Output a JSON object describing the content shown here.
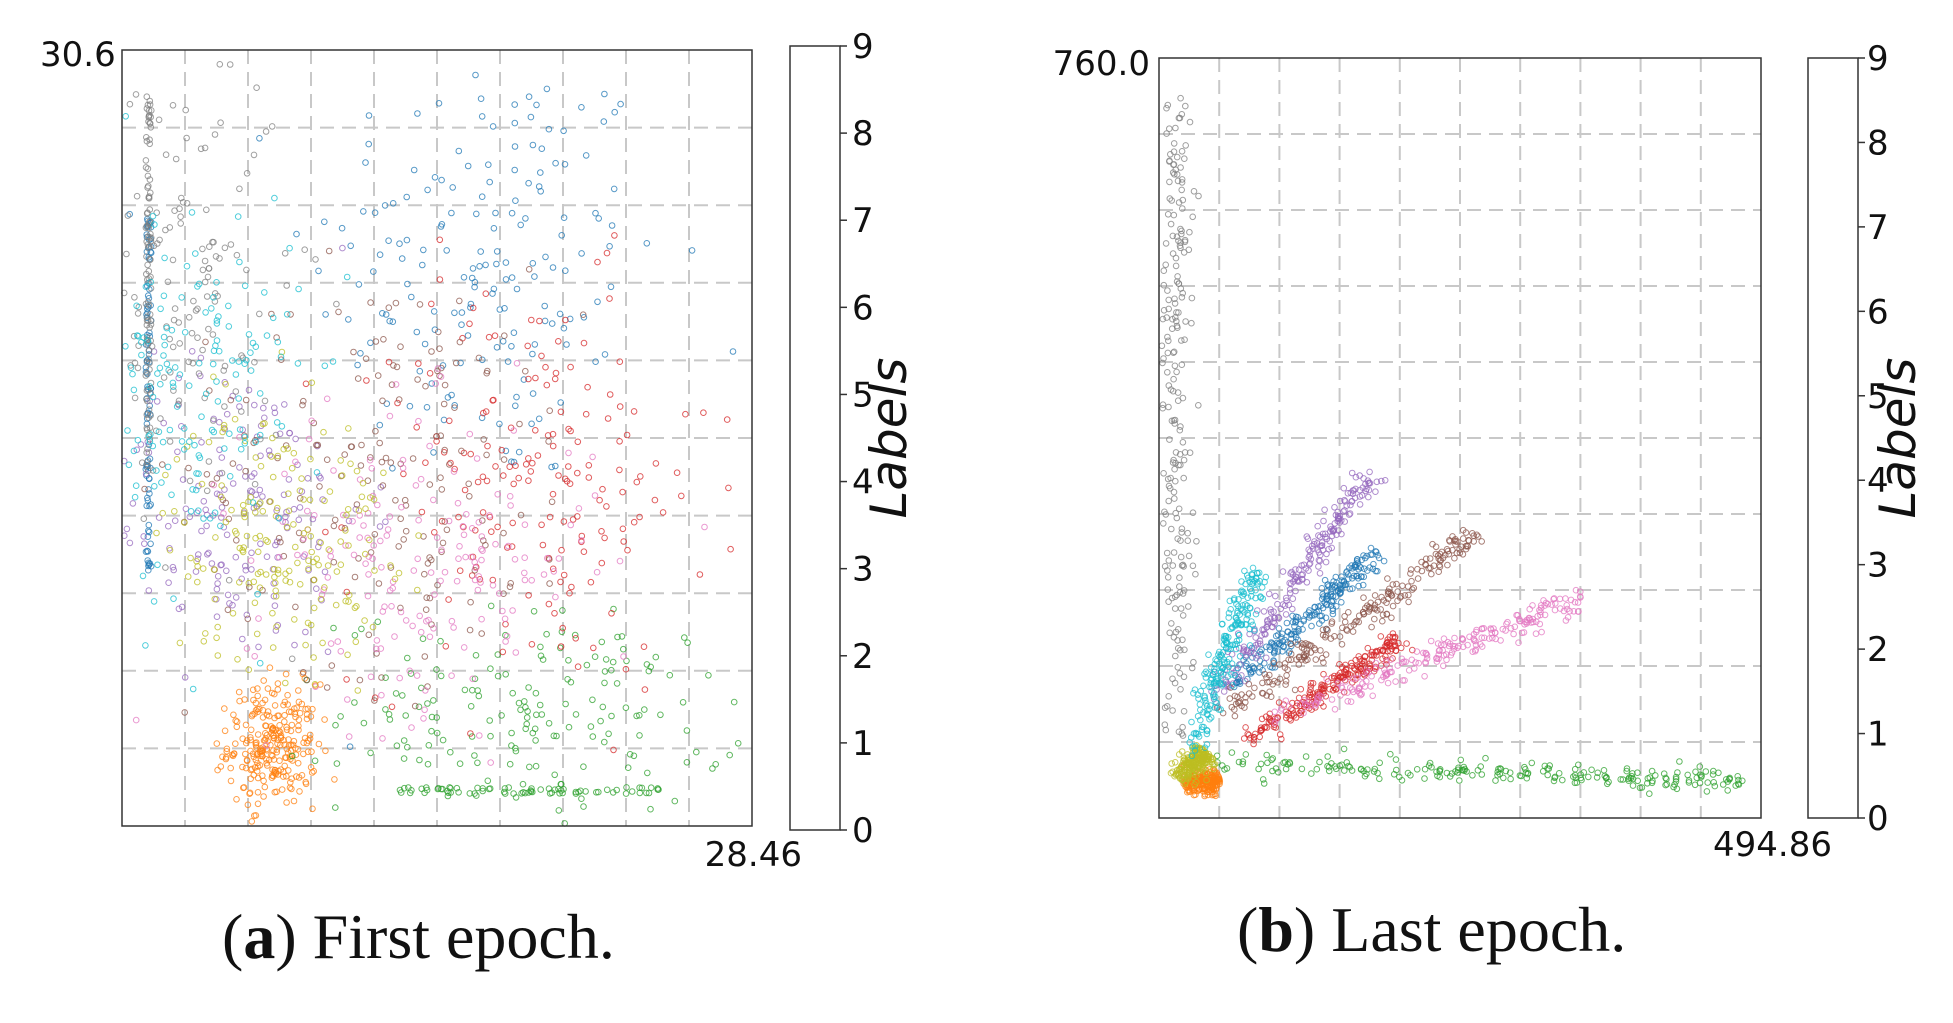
{
  "figure": {
    "captions": [
      {
        "label": "a",
        "text": "First epoch."
      },
      {
        "label": "b",
        "text": "Last epoch."
      }
    ]
  },
  "colors": {
    "0": "#1f77b4",
    "1": "#ff7f0e",
    "2": "#2ca02c",
    "3": "#d62728",
    "4": "#9467bd",
    "5": "#8c564b",
    "6": "#e377c2",
    "7": "#7f7f7f",
    "8": "#bcbd22",
    "9": "#17becf",
    "grid": "#c8c8c8"
  },
  "chart_data": [
    {
      "type": "scatter",
      "title": "",
      "xlabel": "",
      "ylabel": "",
      "x_tick_label": "28.46",
      "y_tick_label": "30.6",
      "xlim": [
        0,
        28.46
      ],
      "ylim": [
        0,
        30.6
      ],
      "grid": true,
      "colorbar": {
        "label": "Labels",
        "ticks": [
          "0",
          "1",
          "2",
          "3",
          "4",
          "5",
          "6",
          "7",
          "8",
          "9"
        ]
      },
      "series": [
        {
          "name": "0",
          "cluster": {
            "center": [
              16.5,
              22.0
            ],
            "spread": [
              4.0,
              4.5
            ]
          },
          "stripe": {
            "x": 1.2,
            "y_range": [
              10,
              24
            ]
          }
        },
        {
          "name": "1",
          "cluster": {
            "center": [
              6.8,
              3.2
            ],
            "spread": [
              1.0,
              1.2
            ]
          }
        },
        {
          "name": "2",
          "cluster": {
            "center": [
              19.0,
              4.5
            ],
            "spread": [
              4.5,
              2.0
            ]
          },
          "row": {
            "y": 1.4,
            "x_range": [
              12.5,
              24.5
            ]
          }
        },
        {
          "name": "3",
          "cluster": {
            "center": [
              18.5,
              13.5
            ],
            "spread": [
              4.0,
              4.0
            ]
          }
        },
        {
          "name": "4",
          "cluster": {
            "center": [
              5.0,
              12.5
            ],
            "spread": [
              3.0,
              3.0
            ]
          }
        },
        {
          "name": "5",
          "cluster": {
            "center": [
              12.0,
              14.0
            ],
            "spread": [
              4.5,
              4.0
            ]
          }
        },
        {
          "name": "6",
          "cluster": {
            "center": [
              13.5,
              10.5
            ],
            "spread": [
              4.0,
              3.0
            ]
          }
        },
        {
          "name": "7",
          "cluster": {
            "center": [
              2.5,
              21.0
            ],
            "spread": [
              2.5,
              5.0
            ]
          },
          "stripe": {
            "x": 1.2,
            "y_range": [
              14,
              29
            ]
          }
        },
        {
          "name": "8",
          "cluster": {
            "center": [
              7.0,
              11.5
            ],
            "spread": [
              2.5,
              2.5
            ]
          }
        },
        {
          "name": "9",
          "cluster": {
            "center": [
              3.0,
              17.0
            ],
            "spread": [
              2.5,
              4.0
            ]
          }
        }
      ]
    },
    {
      "type": "scatter",
      "title": "",
      "xlabel": "",
      "ylabel": "",
      "x_tick_label": "494.86",
      "y_tick_label": "760.0",
      "xlim": [
        0,
        494.86
      ],
      "ylim": [
        0,
        760.0
      ],
      "grid": true,
      "colorbar": {
        "label": "Labels",
        "ticks": [
          "0",
          "1",
          "2",
          "3",
          "4",
          "5",
          "6",
          "7",
          "8",
          "9"
        ]
      },
      "series": [
        {
          "name": "0",
          "ray": {
            "from": [
              60,
              130
            ],
            "to": [
              180,
              265
            ]
          }
        },
        {
          "name": "1",
          "ray": {
            "from": [
              20,
              36
            ],
            "to": [
              50,
              36
            ]
          }
        },
        {
          "name": "2",
          "ray": {
            "from": [
              40,
              55
            ],
            "to": [
              480,
              36
            ]
          }
        },
        {
          "name": "3",
          "ray": {
            "from": [
              70,
              75
            ],
            "to": [
              200,
              180
            ]
          }
        },
        {
          "name": "4",
          "ray": {
            "from": [
              40,
              110
            ],
            "to": [
              175,
              345
            ]
          }
        },
        {
          "name": "5",
          "ray": {
            "from": [
              50,
              100
            ],
            "to": [
              260,
              285
            ]
          }
        },
        {
          "name": "6",
          "ray": {
            "from": [
              90,
              100
            ],
            "to": [
              350,
              220
            ]
          }
        },
        {
          "name": "7",
          "ray": {
            "from": [
              14,
              80
            ],
            "to": [
              14,
              720
            ]
          }
        },
        {
          "name": "8",
          "ray": {
            "from": [
              14,
              40
            ],
            "to": [
              40,
              65
            ]
          }
        },
        {
          "name": "9",
          "ray": {
            "from": [
              25,
              60
            ],
            "to": [
              80,
              250
            ]
          }
        }
      ]
    }
  ]
}
